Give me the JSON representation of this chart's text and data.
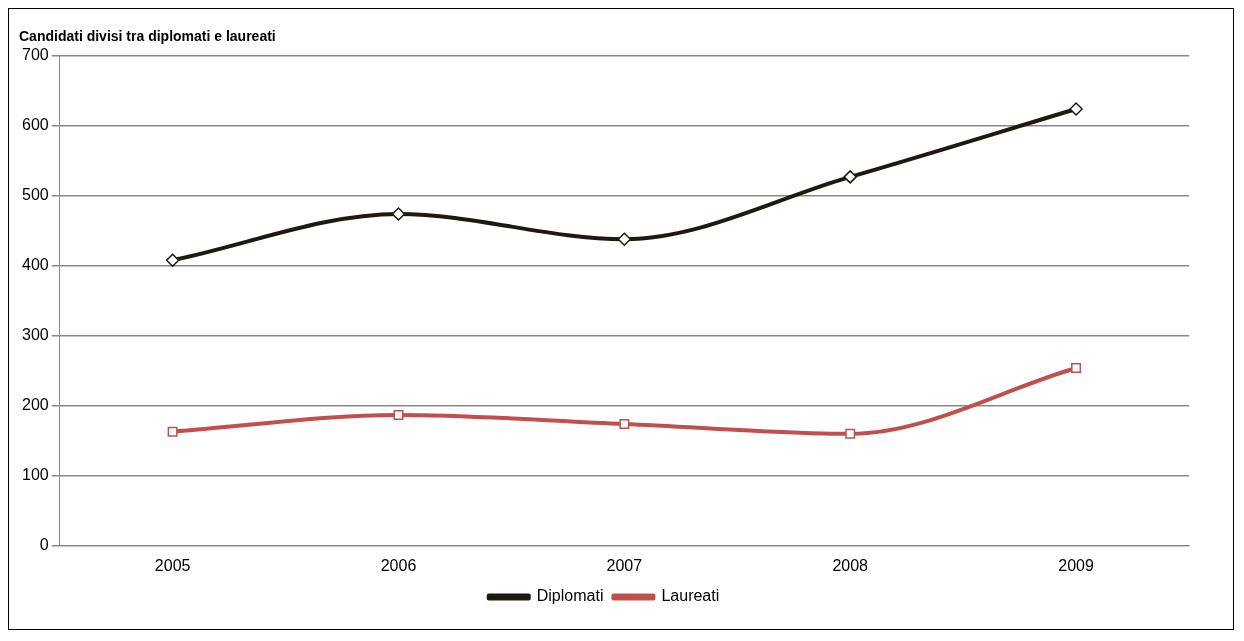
{
  "chart_data": {
    "type": "line",
    "title": "Candidati divisi tra diplomati e laureati",
    "categories": [
      "2005",
      "2006",
      "2007",
      "2008",
      "2009"
    ],
    "series": [
      {
        "name": "Diplomati",
        "color": "#1f1a10",
        "values": [
          408,
          474,
          438,
          527,
          624
        ],
        "marker": "diamond"
      },
      {
        "name": "Laureati",
        "color": "#c0504d",
        "values": [
          163,
          187,
          174,
          160,
          254
        ],
        "marker": "square"
      }
    ],
    "ylim": [
      0,
      700
    ],
    "yticks": [
      0,
      100,
      200,
      300,
      400,
      500,
      600,
      700
    ],
    "grid": "y",
    "legend": "bottom",
    "line_style": "solid"
  }
}
